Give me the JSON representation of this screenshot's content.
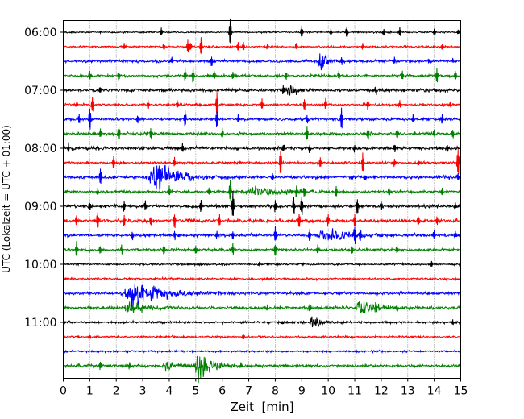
{
  "chart_data": {
    "type": "line",
    "title": "",
    "xlabel": "Zeit  [min]",
    "ylabel": "UTC (Lokalzeit = UTC + 01:00)",
    "xlim": [
      0,
      15
    ],
    "x_ticks": [
      "0",
      "1",
      "2",
      "3",
      "4",
      "5",
      "6",
      "7",
      "8",
      "9",
      "10",
      "11",
      "12",
      "13",
      "14",
      "15"
    ],
    "y_tick_labels": [
      "06:00",
      "07:00",
      "08:00",
      "09:00",
      "10:00",
      "11:00"
    ],
    "rows_per_hour": 4,
    "minutes_per_row": 15,
    "grid": "x-dotted",
    "colors": [
      "#000000",
      "#ff0000",
      "#0000ff",
      "#008000"
    ],
    "rows": [
      {
        "time": "06:00",
        "noise": 0.25,
        "spikes": [
          [
            6.3,
            7
          ],
          [
            9.0,
            3
          ],
          [
            10.7,
            2.5
          ],
          [
            12.7,
            2.5
          ],
          [
            3.7,
            1.8
          ],
          [
            10.1,
            1.6
          ],
          [
            12.1,
            1.6
          ],
          [
            14.0,
            1.5
          ],
          [
            14.9,
            1.4
          ]
        ],
        "events": []
      },
      {
        "time": "06:15",
        "noise": 0.3,
        "spikes": [
          [
            5.2,
            5
          ],
          [
            4.7,
            3
          ],
          [
            4.8,
            2.5
          ],
          [
            6.8,
            2.5
          ],
          [
            3.8,
            2
          ],
          [
            6.6,
            2
          ],
          [
            2.3,
            1.6
          ],
          [
            7.7,
            1.6
          ],
          [
            8.8,
            1.6
          ],
          [
            11.3,
            1.6
          ],
          [
            14.3,
            1.6
          ]
        ],
        "events": []
      },
      {
        "time": "06:30",
        "noise": 0.4,
        "spikes": [
          [
            5.6,
            2.5
          ],
          [
            10.5,
            2
          ],
          [
            12.5,
            1.5
          ],
          [
            4.1,
            1.5
          ],
          [
            13.8,
            1.5
          ],
          [
            14.7,
            1.5
          ]
        ],
        "events": [
          {
            "t": 9.7,
            "amp": 4,
            "dur": 0.5
          }
        ]
      },
      {
        "time": "06:45",
        "noise": 0.35,
        "spikes": [
          [
            4.9,
            4
          ],
          [
            4.6,
            3
          ],
          [
            1.0,
            2.5
          ],
          [
            2.1,
            2.5
          ],
          [
            14.1,
            3.5
          ],
          [
            14.8,
            2
          ],
          [
            5.7,
            2
          ],
          [
            6.4,
            2
          ],
          [
            8.4,
            2
          ],
          [
            10.4,
            2
          ],
          [
            12.8,
            2
          ]
        ],
        "events": []
      },
      {
        "time": "07:00",
        "noise": 0.5,
        "spikes": [
          [
            8.3,
            2
          ],
          [
            8.6,
            2
          ],
          [
            11.8,
            1.7
          ],
          [
            1.4,
            1.7
          ]
        ],
        "events": [
          {
            "t": 8.5,
            "amp": 2,
            "dur": 0.6
          }
        ]
      },
      {
        "time": "07:15",
        "noise": 0.35,
        "spikes": [
          [
            5.8,
            6.5
          ],
          [
            1.1,
            4
          ],
          [
            7.5,
            3
          ],
          [
            9.1,
            3
          ],
          [
            9.9,
            3
          ],
          [
            3.2,
            2.5
          ],
          [
            4.3,
            2.5
          ],
          [
            11.5,
            2.5
          ],
          [
            12.7,
            2
          ],
          [
            0.5,
            1.5
          ],
          [
            14.6,
            1.5
          ]
        ],
        "events": []
      },
      {
        "time": "07:30",
        "noise": 0.4,
        "spikes": [
          [
            1.0,
            6
          ],
          [
            10.5,
            6
          ],
          [
            4.6,
            4.5
          ],
          [
            5.8,
            4
          ],
          [
            2.8,
            2.5
          ],
          [
            0.6,
            2.5
          ],
          [
            6.6,
            2
          ],
          [
            9.2,
            2
          ],
          [
            13.2,
            2
          ],
          [
            14.3,
            2.5
          ]
        ],
        "events": []
      },
      {
        "time": "07:45",
        "noise": 0.4,
        "spikes": [
          [
            2.1,
            3.5
          ],
          [
            9.2,
            4
          ],
          [
            11.5,
            3
          ],
          [
            6.0,
            2.5
          ],
          [
            1.4,
            2.5
          ],
          [
            3.3,
            2.5
          ],
          [
            12.6,
            2.5
          ],
          [
            14.0,
            2
          ],
          [
            14.7,
            2
          ]
        ],
        "events": []
      },
      {
        "time": "08:00",
        "noise": 0.5,
        "spikes": [
          [
            4.5,
            2.5
          ],
          [
            8.3,
            2
          ],
          [
            9.3,
            2
          ],
          [
            11.0,
            2
          ],
          [
            14.5,
            2
          ],
          [
            0.2,
            1.8
          ],
          [
            12.5,
            1.8
          ]
        ],
        "events": []
      },
      {
        "time": "08:15",
        "noise": 0.4,
        "spikes": [
          [
            8.2,
            7
          ],
          [
            14.9,
            7
          ],
          [
            11.3,
            5
          ],
          [
            1.9,
            3
          ],
          [
            4.2,
            2.5
          ],
          [
            9.7,
            2.5
          ],
          [
            12.5,
            2
          ],
          [
            13.4,
            2
          ]
        ],
        "events": []
      },
      {
        "time": "08:30",
        "noise": 0.5,
        "spikes": [
          [
            1.4,
            4
          ],
          [
            7.9,
            2
          ],
          [
            14.9,
            1.7
          ],
          [
            11.4,
            1.5
          ]
        ],
        "events": [
          {
            "t": 3.5,
            "amp": 5.5,
            "dur": 1.5
          }
        ]
      },
      {
        "time": "08:45",
        "noise": 0.4,
        "spikes": [
          [
            6.3,
            6
          ],
          [
            8.8,
            3
          ],
          [
            9.1,
            3
          ],
          [
            4.0,
            2.5
          ],
          [
            10.3,
            2.5
          ],
          [
            1.3,
            2
          ],
          [
            5.5,
            2
          ],
          [
            12.3,
            2
          ],
          [
            14.3,
            2
          ]
        ],
        "events": [
          {
            "t": 7.2,
            "amp": 1.8,
            "dur": 2.0
          }
        ]
      },
      {
        "time": "09:00",
        "noise": 0.45,
        "spikes": [
          [
            6.4,
            7
          ],
          [
            8.7,
            4.5
          ],
          [
            9.0,
            4.5
          ],
          [
            11.1,
            4
          ],
          [
            2.3,
            3
          ],
          [
            5.2,
            3
          ],
          [
            8.0,
            3
          ],
          [
            3.1,
            2.5
          ],
          [
            12.0,
            2.5
          ],
          [
            14.8,
            2
          ],
          [
            1.0,
            2
          ]
        ],
        "events": []
      },
      {
        "time": "09:15",
        "noise": 0.5,
        "spikes": [
          [
            1.3,
            4
          ],
          [
            2.3,
            3
          ],
          [
            4.2,
            3.5
          ],
          [
            5.9,
            3
          ],
          [
            8.9,
            4
          ],
          [
            10.0,
            3
          ],
          [
            11.0,
            3
          ],
          [
            13.4,
            2.5
          ],
          [
            14.1,
            2
          ],
          [
            0.5,
            2.5
          ],
          [
            3.3,
            2.5
          ]
        ],
        "events": []
      },
      {
        "time": "09:30",
        "noise": 0.45,
        "spikes": [
          [
            11.0,
            5
          ],
          [
            8.0,
            4
          ],
          [
            11.2,
            3
          ],
          [
            9.3,
            3
          ],
          [
            4.2,
            2.5
          ],
          [
            5.8,
            2
          ],
          [
            6.4,
            2
          ],
          [
            14.0,
            2
          ],
          [
            14.8,
            2
          ],
          [
            2.6,
            2
          ]
        ],
        "events": [
          {
            "t": 9.9,
            "amp": 2.2,
            "dur": 1.8
          }
        ]
      },
      {
        "time": "09:45",
        "noise": 0.4,
        "spikes": [
          [
            0.5,
            4
          ],
          [
            6.4,
            3
          ],
          [
            8.0,
            3
          ],
          [
            3.8,
            2.5
          ],
          [
            1.4,
            2
          ],
          [
            2.2,
            2
          ],
          [
            5.0,
            2
          ],
          [
            9.6,
            2
          ],
          [
            10.9,
            2
          ],
          [
            12.6,
            2
          ]
        ],
        "events": []
      },
      {
        "time": "10:00",
        "noise": 0.3,
        "spikes": [
          [
            13.9,
            1.5
          ],
          [
            7.4,
            1.3
          ]
        ],
        "events": []
      },
      {
        "time": "10:15",
        "noise": 0.3,
        "spikes": [],
        "events": []
      },
      {
        "time": "10:30",
        "noise": 0.4,
        "spikes": [
          [
            3.0,
            3
          ],
          [
            4.3,
            1.5
          ]
        ],
        "events": [
          {
            "t": 2.6,
            "amp": 4,
            "dur": 2.4
          }
        ]
      },
      {
        "time": "10:45",
        "noise": 0.45,
        "spikes": [
          [
            7.7,
            1.5
          ],
          [
            9.3,
            1.5
          ],
          [
            12.6,
            1.3
          ]
        ],
        "events": [
          {
            "t": 11.2,
            "amp": 5,
            "dur": 0.8
          },
          {
            "t": 2.5,
            "amp": 1.6,
            "dur": 1.4
          }
        ]
      },
      {
        "time": "11:00",
        "noise": 0.35,
        "spikes": [
          [
            14.7,
            1.4
          ],
          [
            8.3,
            1.2
          ]
        ],
        "events": [
          {
            "t": 9.4,
            "amp": 2.5,
            "dur": 0.6
          }
        ]
      },
      {
        "time": "11:15",
        "noise": 0.3,
        "spikes": [
          [
            1.0,
            1.2
          ],
          [
            6.8,
            1.2
          ]
        ],
        "events": []
      },
      {
        "time": "11:30",
        "noise": 0.3,
        "spikes": [],
        "events": []
      },
      {
        "time": "11:45",
        "noise": 0.45,
        "spikes": [
          [
            1.4,
            2
          ],
          [
            2.5,
            1.8
          ],
          [
            6.7,
            1.6
          ]
        ],
        "events": [
          {
            "t": 5.1,
            "amp": 5,
            "dur": 0.9
          },
          {
            "t": 3.9,
            "amp": 2,
            "dur": 0.8
          }
        ]
      }
    ]
  }
}
